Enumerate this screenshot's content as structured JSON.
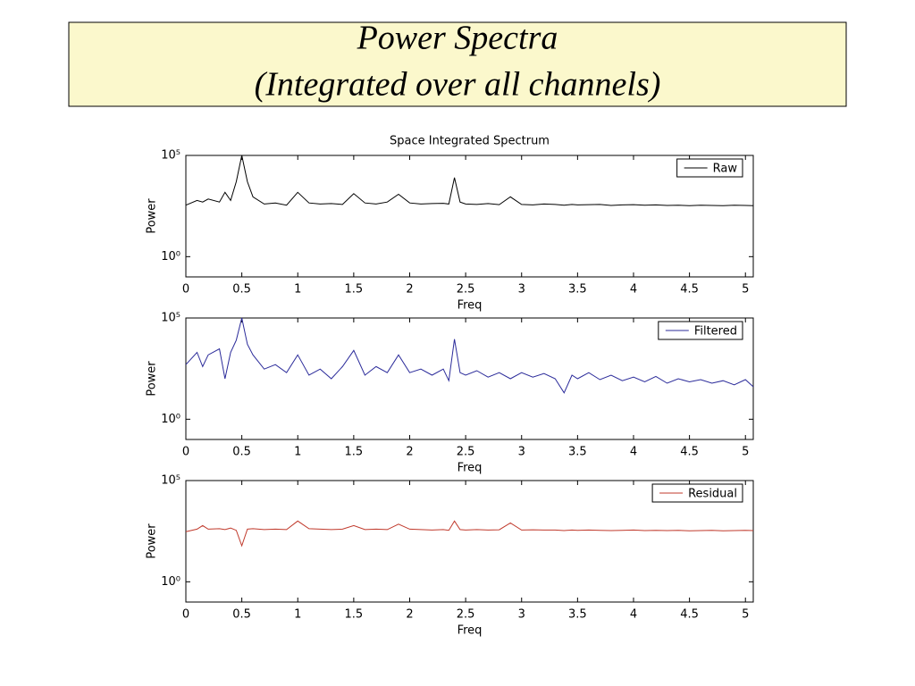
{
  "header": {
    "title_lines": [
      "Power Spectra",
      "(Integrated over all channels)"
    ]
  },
  "chart_data": [
    {
      "type": "line",
      "title": "Space Integrated Spectrum",
      "xlabel": "Freq",
      "ylabel": "Power",
      "x": [
        0,
        0.1,
        0.15,
        0.2,
        0.3,
        0.35,
        0.4,
        0.45,
        0.5,
        0.55,
        0.6,
        0.7,
        0.8,
        0.9,
        1.0,
        1.1,
        1.2,
        1.3,
        1.4,
        1.5,
        1.6,
        1.7,
        1.8,
        1.9,
        2.0,
        2.1,
        2.2,
        2.3,
        2.35,
        2.4,
        2.45,
        2.5,
        2.6,
        2.7,
        2.8,
        2.9,
        3.0,
        3.1,
        3.2,
        3.3,
        3.38,
        3.45,
        3.5,
        3.6,
        3.7,
        3.8,
        3.9,
        4.0,
        4.1,
        4.2,
        4.3,
        4.4,
        4.5,
        4.6,
        4.7,
        4.8,
        4.9,
        5.0,
        5.07
      ],
      "series": [
        {
          "name": "Raw",
          "color": "#000000",
          "values": [
            350,
            600,
            500,
            700,
            500,
            1500,
            600,
            5000,
            100000,
            5000,
            900,
            400,
            450,
            350,
            1500,
            450,
            400,
            420,
            380,
            1300,
            450,
            400,
            500,
            1200,
            450,
            400,
            420,
            430,
            400,
            8000,
            500,
            400,
            380,
            420,
            370,
            900,
            380,
            360,
            400,
            380,
            350,
            380,
            360,
            370,
            380,
            340,
            360,
            370,
            350,
            360,
            340,
            350,
            330,
            350,
            340,
            330,
            350,
            340,
            330
          ]
        }
      ],
      "xlim": [
        0,
        5.07
      ],
      "xticks": [
        0,
        0.5,
        1,
        1.5,
        2,
        2.5,
        3,
        3.5,
        4,
        4.5,
        5
      ],
      "ylim": [
        0.1,
        100000
      ],
      "yticks": [
        {
          "value": 1,
          "label": "10⁰"
        },
        {
          "value": 100000,
          "label": "10⁵"
        }
      ],
      "log_y": true,
      "legend": "top-right"
    },
    {
      "type": "line",
      "xlabel": "Freq",
      "ylabel": "Power",
      "x": [
        0,
        0.1,
        0.15,
        0.2,
        0.3,
        0.35,
        0.4,
        0.45,
        0.5,
        0.55,
        0.6,
        0.7,
        0.8,
        0.9,
        1.0,
        1.1,
        1.2,
        1.3,
        1.4,
        1.5,
        1.6,
        1.7,
        1.8,
        1.9,
        2.0,
        2.1,
        2.2,
        2.3,
        2.35,
        2.4,
        2.45,
        2.5,
        2.6,
        2.7,
        2.8,
        2.9,
        3.0,
        3.1,
        3.2,
        3.3,
        3.38,
        3.45,
        3.5,
        3.6,
        3.7,
        3.8,
        3.9,
        4.0,
        4.1,
        4.2,
        4.3,
        4.4,
        4.5,
        4.6,
        4.7,
        4.8,
        4.9,
        5.0,
        5.07
      ],
      "series": [
        {
          "name": "Filtered",
          "color": "#2b2b9a",
          "values": [
            500,
            2000,
            400,
            1500,
            3000,
            100,
            2000,
            8000,
            100000,
            5000,
            1500,
            300,
            500,
            200,
            1500,
            150,
            300,
            100,
            400,
            2500,
            150,
            400,
            200,
            1500,
            200,
            300,
            150,
            300,
            80,
            9000,
            200,
            150,
            250,
            120,
            200,
            100,
            200,
            120,
            180,
            100,
            20,
            150,
            100,
            200,
            90,
            150,
            80,
            120,
            70,
            130,
            60,
            100,
            70,
            90,
            60,
            80,
            50,
            90,
            40
          ]
        }
      ],
      "xlim": [
        0,
        5.07
      ],
      "xticks": [
        0,
        0.5,
        1,
        1.5,
        2,
        2.5,
        3,
        3.5,
        4,
        4.5,
        5
      ],
      "ylim": [
        0.1,
        100000
      ],
      "yticks": [
        {
          "value": 1,
          "label": "10⁰"
        },
        {
          "value": 100000,
          "label": "10⁵"
        }
      ],
      "log_y": true,
      "legend": "top-right"
    },
    {
      "type": "line",
      "xlabel": "Freq",
      "ylabel": "Power",
      "x": [
        0,
        0.1,
        0.15,
        0.2,
        0.3,
        0.35,
        0.4,
        0.45,
        0.5,
        0.55,
        0.6,
        0.7,
        0.8,
        0.9,
        1.0,
        1.1,
        1.2,
        1.3,
        1.4,
        1.5,
        1.6,
        1.7,
        1.8,
        1.9,
        2.0,
        2.1,
        2.2,
        2.3,
        2.35,
        2.4,
        2.45,
        2.5,
        2.6,
        2.7,
        2.8,
        2.9,
        3.0,
        3.1,
        3.2,
        3.3,
        3.38,
        3.45,
        3.5,
        3.6,
        3.7,
        3.8,
        3.9,
        4.0,
        4.1,
        4.2,
        4.3,
        4.4,
        4.5,
        4.6,
        4.7,
        4.8,
        4.9,
        5.0,
        5.07
      ],
      "series": [
        {
          "name": "Residual",
          "color": "#c0392b",
          "values": [
            300,
            400,
            600,
            400,
            420,
            380,
            450,
            350,
            60,
            400,
            420,
            380,
            400,
            380,
            1000,
            420,
            400,
            380,
            400,
            600,
            380,
            400,
            380,
            700,
            400,
            380,
            360,
            380,
            350,
            1000,
            380,
            360,
            380,
            360,
            370,
            800,
            360,
            370,
            360,
            360,
            340,
            360,
            350,
            360,
            350,
            340,
            350,
            360,
            340,
            350,
            340,
            350,
            330,
            340,
            350,
            330,
            340,
            350,
            340
          ]
        }
      ],
      "xlim": [
        0,
        5.07
      ],
      "xticks": [
        0,
        0.5,
        1,
        1.5,
        2,
        2.5,
        3,
        3.5,
        4,
        4.5,
        5
      ],
      "ylim": [
        0.1,
        100000
      ],
      "yticks": [
        {
          "value": 1,
          "label": "10⁰"
        },
        {
          "value": 100000,
          "label": "10⁵"
        }
      ],
      "log_y": true,
      "legend": "top-right"
    }
  ]
}
